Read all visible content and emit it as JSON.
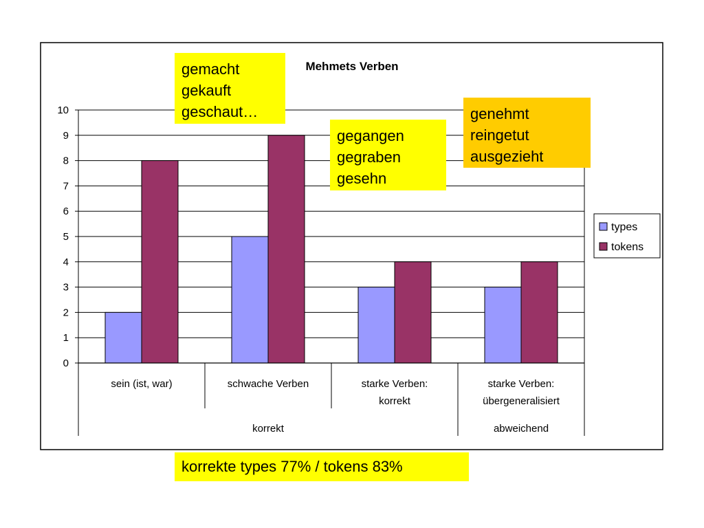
{
  "chart_data": {
    "type": "bar",
    "title": "Mehmets Verben",
    "categories": [
      "sein (ist, war)",
      "schwache Verben",
      "starke Verben: korrekt",
      "starke Verben: übergeneralisiert"
    ],
    "category_lines": [
      [
        "sein (ist, war)"
      ],
      [
        "schwache Verben"
      ],
      [
        "starke Verben:",
        "korrekt"
      ],
      [
        "starke Verben:",
        "übergeneralisiert"
      ]
    ],
    "groups": [
      {
        "label": "korrekt",
        "categories": [
          0,
          1,
          2
        ]
      },
      {
        "label": "abweichend",
        "categories": [
          3
        ]
      }
    ],
    "series": [
      {
        "name": "types",
        "values": [
          2,
          5,
          3,
          3
        ],
        "color": "#9999ff"
      },
      {
        "name": "tokens",
        "values": [
          8,
          9,
          4,
          4
        ],
        "color": "#993366"
      }
    ],
    "ylim": [
      0,
      10
    ],
    "yticks": [
      0,
      1,
      2,
      3,
      4,
      5,
      6,
      7,
      8,
      9,
      10
    ],
    "grid": true,
    "legend": "right"
  },
  "notes": [
    {
      "lines": [
        "gemacht",
        "gekauft",
        "geschaut…"
      ],
      "color": "#ffff00"
    },
    {
      "lines": [
        "gegangen",
        "gegraben",
        "gesehn"
      ],
      "color": "#ffff00"
    },
    {
      "lines": [
        "genehmt",
        "reingetut",
        "ausgezieht"
      ],
      "color": "#ffcc00"
    }
  ],
  "summary": "korrekte types 77% / tokens 83%"
}
